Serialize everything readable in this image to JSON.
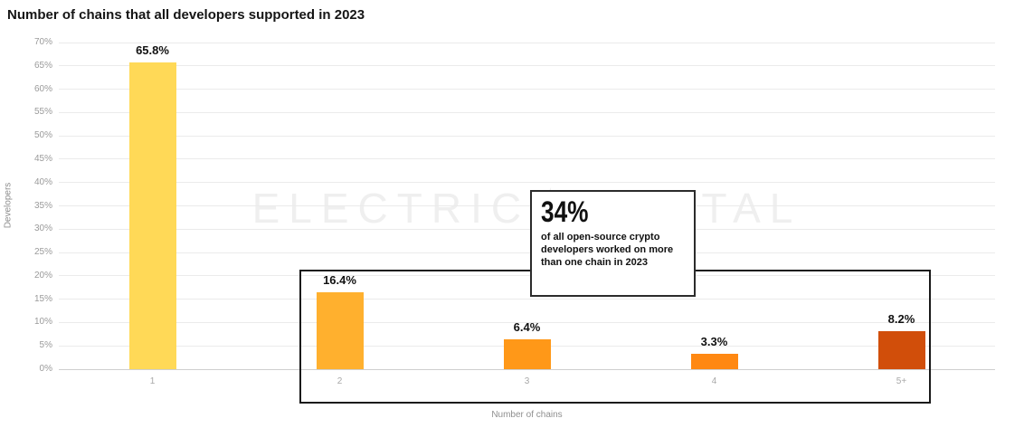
{
  "page": {
    "title": "Number of chains that all developers supported in 2023"
  },
  "watermark": {
    "left": "ELECTRIC",
    "right": "CAPITAL"
  },
  "callout": {
    "headline": "34%",
    "body": "of all open-source crypto developers worked on more than one chain in 2023"
  },
  "chart_data": {
    "type": "bar",
    "title": "Number of chains that all developers supported in 2023",
    "categories": [
      "1",
      "2",
      "3",
      "4",
      "5+"
    ],
    "values": [
      65.8,
      16.4,
      6.4,
      3.3,
      8.2
    ],
    "value_labels": [
      "65.8%",
      "16.4%",
      "6.4%",
      "3.3%",
      "8.2%"
    ],
    "bar_colors": [
      "#FFD957",
      "#FFB02E",
      "#FF9818",
      "#FF8812",
      "#D14E0A"
    ],
    "xlabel": "Number of chains",
    "ylabel": "Developers",
    "ylim": [
      0,
      70
    ],
    "ytick_step": 5,
    "ytick_labels": [
      "0%",
      "5%",
      "10%",
      "15%",
      "20%",
      "25%",
      "30%",
      "35%",
      "40%",
      "45%",
      "50%",
      "55%",
      "60%",
      "65%",
      "70%"
    ],
    "grid": true,
    "legend": false,
    "group_box_categories": [
      "2",
      "3",
      "4",
      "5+"
    ]
  }
}
